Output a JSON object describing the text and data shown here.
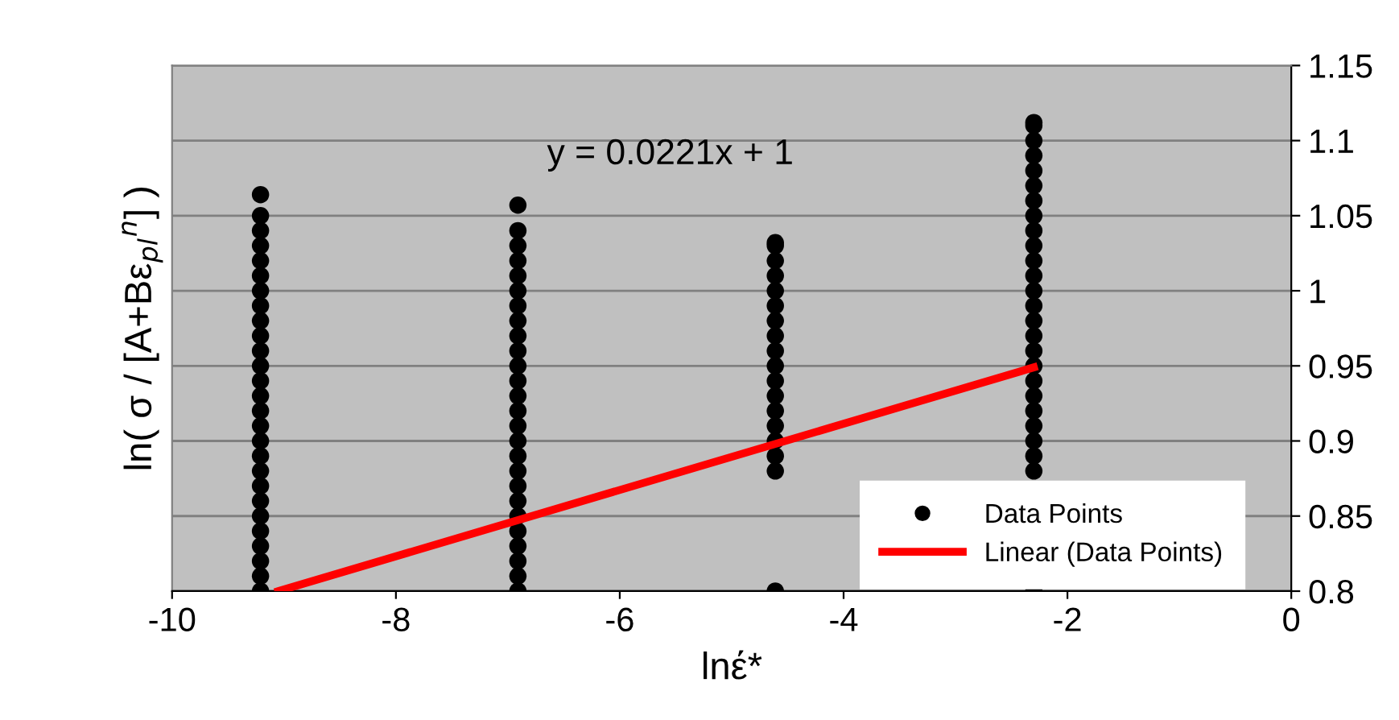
{
  "chart_data": {
    "type": "scatter",
    "xlabel": "lnέ*",
    "ylabel": "ln( σ / [A+Bε$_{pl}$$^{n}$] )",
    "annotations": [
      "y = 0.0221x + 1"
    ],
    "series": [
      {
        "name": "Data Points",
        "color": "#000000",
        "marker": "circle",
        "x": [
          -9.21,
          -9.21,
          -9.21,
          -9.21,
          -9.21,
          -9.21,
          -9.21,
          -9.21,
          -9.21,
          -9.21,
          -9.21,
          -9.21,
          -9.21,
          -9.21,
          -9.21,
          -9.21,
          -9.21,
          -9.21,
          -9.21,
          -9.21,
          -9.21,
          -9.21,
          -9.21,
          -9.21,
          -9.21,
          -9.21,
          -9.21,
          -6.91,
          -6.91,
          -6.91,
          -6.91,
          -6.91,
          -6.91,
          -6.91,
          -6.91,
          -6.91,
          -6.91,
          -6.91,
          -6.91,
          -6.91,
          -6.91,
          -6.91,
          -6.91,
          -6.91,
          -6.91,
          -6.91,
          -6.91,
          -6.91,
          -6.91,
          -6.91,
          -6.91,
          -6.91,
          -6.91,
          -4.61,
          -4.61,
          -4.61,
          -4.61,
          -4.61,
          -4.61,
          -4.61,
          -4.61,
          -4.61,
          -4.61,
          -4.61,
          -4.61,
          -4.61,
          -4.61,
          -4.61,
          -4.61,
          -4.61,
          -4.61,
          -2.3,
          -2.3,
          -2.3,
          -2.3,
          -2.3,
          -2.3,
          -2.3,
          -2.3,
          -2.3,
          -2.3,
          -2.3,
          -2.3,
          -2.3,
          -2.3,
          -2.3,
          -2.3,
          -2.3,
          -2.3,
          -2.3,
          -2.3,
          -2.3,
          -2.3,
          -2.3,
          -2.3,
          -2.3,
          -2.3
        ],
        "values": [
          0.8,
          0.81,
          0.82,
          0.83,
          0.84,
          0.85,
          0.86,
          0.87,
          0.88,
          0.89,
          0.9,
          0.91,
          0.92,
          0.93,
          0.94,
          0.95,
          0.96,
          0.97,
          0.98,
          0.99,
          1.0,
          1.01,
          1.02,
          1.03,
          1.04,
          1.05,
          1.064,
          0.8,
          0.81,
          0.82,
          0.83,
          0.84,
          0.85,
          0.86,
          0.87,
          0.88,
          0.89,
          0.9,
          0.91,
          0.92,
          0.93,
          0.94,
          0.95,
          0.96,
          0.97,
          0.98,
          0.99,
          1.0,
          1.01,
          1.02,
          1.03,
          1.04,
          1.057,
          0.8,
          0.88,
          0.89,
          0.9,
          0.91,
          0.92,
          0.93,
          0.94,
          0.95,
          0.96,
          0.97,
          0.98,
          0.99,
          1.0,
          1.01,
          1.02,
          1.03,
          1.032,
          0.8,
          0.88,
          0.89,
          0.9,
          0.91,
          0.92,
          0.93,
          0.94,
          0.95,
          0.96,
          0.97,
          0.98,
          0.99,
          1.0,
          1.01,
          1.02,
          1.03,
          1.04,
          1.05,
          1.06,
          1.07,
          1.08,
          1.09,
          1.1,
          1.11,
          1.112
        ]
      },
      {
        "name": "Linear (Data Points)",
        "type": "line",
        "color": "#ff0000",
        "x": [
          -9.05,
          -2.3
        ],
        "values": [
          0.8,
          0.949
        ]
      }
    ],
    "xlim": [
      -10,
      0
    ],
    "xticks": [
      -10,
      -8,
      -6,
      -4,
      -2,
      0
    ],
    "ylim": [
      0.8,
      1.15
    ],
    "yticks": [
      0.8,
      0.85,
      0.9,
      0.95,
      1,
      1.05,
      1.1,
      1.15
    ],
    "grid": "y",
    "legend": "bottom right"
  }
}
